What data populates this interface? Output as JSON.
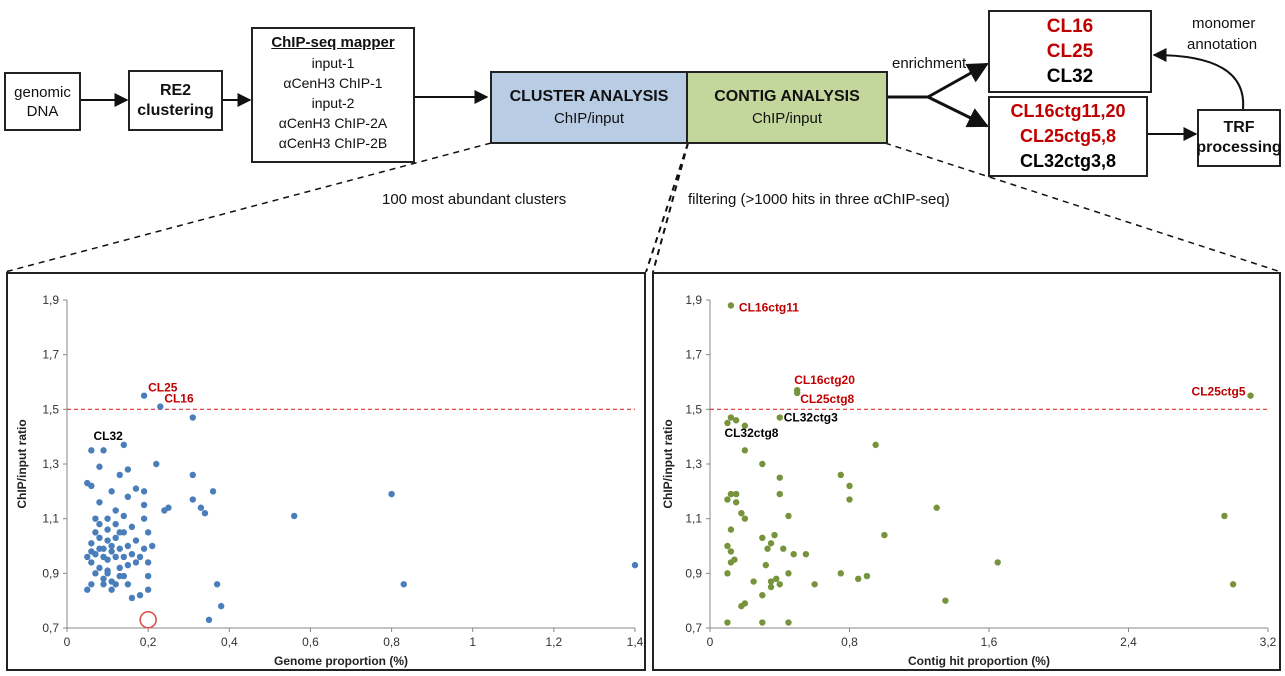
{
  "pipeline": {
    "genomic_dna": [
      "genomic",
      "DNA"
    ],
    "re2": [
      "RE2",
      "clustering"
    ],
    "mapper": {
      "title": "ChIP-seq mapper",
      "lines": [
        "input-1",
        "αCenH3 ChIP-1",
        "input-2",
        "αCenH3 ChIP-2A",
        "αCenH3 ChIP-2B"
      ]
    },
    "cluster_analysis": {
      "title": "CLUSTER ANALYSIS",
      "sub": "ChIP/input",
      "color": "#b8cce4"
    },
    "contig_analysis": {
      "title": "CONTIG ANALYSIS",
      "sub": "ChIP/input",
      "color": "#c3d69b"
    },
    "enrichment_label": "enrichment",
    "monomer_label": [
      "monomer",
      "annotation"
    ],
    "clusters_box": [
      {
        "text": "CL16",
        "color": "#c00000"
      },
      {
        "text": "CL25",
        "color": "#c00000"
      },
      {
        "text": "CL32",
        "color": "#000000"
      }
    ],
    "contigs_box": [
      {
        "text": "CL16ctg11,20",
        "color": "#c00000"
      },
      {
        "text": "CL25ctg5,8",
        "color": "#c00000"
      },
      {
        "text": "CL32ctg3,8",
        "color": "#000000"
      }
    ],
    "trf": [
      "TRF",
      "processing"
    ],
    "left_caption": "100 most abundant clusters",
    "right_caption": "filtering (>1000 hits in three αChIP-seq)"
  },
  "chart_data": [
    {
      "type": "scatter",
      "xlabel": "Genome proportion (%)",
      "ylabel": "ChIP/input ratio",
      "xlim": [
        0,
        1.4
      ],
      "ylim": [
        0.7,
        1.9
      ],
      "xticks": [
        "0",
        "0,2",
        "0,4",
        "0,6",
        "0,8",
        "1",
        "1,2",
        "1,4"
      ],
      "yticks": [
        "0,7",
        "0,9",
        "1,1",
        "1,3",
        "1,5",
        "1,7",
        "1,9"
      ],
      "threshold": 1.5,
      "point_color": "#4a7ebb",
      "highlight_color": "#d9534f",
      "highlight_point": [
        0.2,
        0.73
      ],
      "points": [
        [
          0.06,
          1.35
        ],
        [
          0.09,
          1.35
        ],
        [
          0.14,
          1.37
        ],
        [
          0.19,
          1.55
        ],
        [
          0.23,
          1.51
        ],
        [
          0.31,
          1.47
        ],
        [
          0.8,
          1.19
        ],
        [
          0.56,
          1.11
        ],
        [
          1.4,
          0.93
        ],
        [
          0.83,
          0.86
        ],
        [
          0.37,
          0.86
        ],
        [
          0.38,
          0.78
        ],
        [
          0.35,
          0.73
        ],
        [
          0.31,
          1.26
        ],
        [
          0.31,
          1.17
        ],
        [
          0.33,
          1.14
        ],
        [
          0.34,
          1.12
        ],
        [
          0.36,
          1.2
        ],
        [
          0.24,
          1.13
        ],
        [
          0.25,
          1.14
        ],
        [
          0.05,
          1.23
        ],
        [
          0.06,
          1.22
        ],
        [
          0.07,
          1.1
        ],
        [
          0.07,
          1.05
        ],
        [
          0.06,
          1.01
        ],
        [
          0.06,
          0.98
        ],
        [
          0.05,
          0.96
        ],
        [
          0.06,
          0.94
        ],
        [
          0.07,
          0.9
        ],
        [
          0.06,
          0.86
        ],
        [
          0.05,
          0.84
        ],
        [
          0.08,
          1.08
        ],
        [
          0.08,
          1.03
        ],
        [
          0.08,
          0.99
        ],
        [
          0.09,
          0.96
        ],
        [
          0.08,
          0.92
        ],
        [
          0.09,
          0.88
        ],
        [
          0.09,
          0.86
        ],
        [
          0.08,
          1.16
        ],
        [
          0.08,
          1.29
        ],
        [
          0.1,
          1.1
        ],
        [
          0.1,
          1.06
        ],
        [
          0.1,
          1.02
        ],
        [
          0.11,
          0.98
        ],
        [
          0.1,
          0.95
        ],
        [
          0.1,
          0.91
        ],
        [
          0.11,
          0.87
        ],
        [
          0.11,
          0.84
        ],
        [
          0.11,
          1.2
        ],
        [
          0.12,
          1.13
        ],
        [
          0.12,
          1.08
        ],
        [
          0.12,
          1.03
        ],
        [
          0.13,
          0.99
        ],
        [
          0.12,
          0.96
        ],
        [
          0.13,
          0.92
        ],
        [
          0.13,
          0.89
        ],
        [
          0.12,
          0.86
        ],
        [
          0.13,
          1.26
        ],
        [
          0.14,
          1.11
        ],
        [
          0.14,
          1.05
        ],
        [
          0.15,
          1.0
        ],
        [
          0.14,
          0.96
        ],
        [
          0.15,
          0.93
        ],
        [
          0.14,
          0.89
        ],
        [
          0.15,
          0.86
        ],
        [
          0.15,
          1.28
        ],
        [
          0.15,
          1.18
        ],
        [
          0.16,
          1.07
        ],
        [
          0.17,
          1.02
        ],
        [
          0.16,
          0.97
        ],
        [
          0.17,
          0.94
        ],
        [
          0.16,
          0.81
        ],
        [
          0.18,
          0.82
        ],
        [
          0.17,
          1.21
        ],
        [
          0.19,
          1.15
        ],
        [
          0.19,
          1.1
        ],
        [
          0.2,
          1.05
        ],
        [
          0.19,
          0.99
        ],
        [
          0.2,
          0.94
        ],
        [
          0.2,
          0.89
        ],
        [
          0.2,
          0.84
        ],
        [
          0.19,
          1.2
        ],
        [
          0.22,
          1.3
        ],
        [
          0.21,
          1.0
        ],
        [
          0.09,
          0.99
        ],
        [
          0.11,
          1.0
        ],
        [
          0.13,
          1.05
        ],
        [
          0.07,
          0.97
        ],
        [
          0.18,
          0.96
        ],
        [
          0.1,
          0.9
        ]
      ],
      "annotations": [
        {
          "text": "CL25",
          "x": 0.19,
          "y": 1.55,
          "color": "#c00000"
        },
        {
          "text": "CL16",
          "x": 0.23,
          "y": 1.51,
          "color": "#c00000"
        },
        {
          "text": "CL32",
          "x": 0.14,
          "y": 1.37,
          "color": "#000000"
        }
      ]
    },
    {
      "type": "scatter",
      "xlabel": "Contig hit proportion (%)",
      "ylabel": "ChIP/input ratio",
      "xlim": [
        0,
        3.2
      ],
      "ylim": [
        0.7,
        1.9
      ],
      "xticks": [
        "0",
        "0,8",
        "1,6",
        "2,4",
        "3,2"
      ],
      "yticks": [
        "0,7",
        "0,9",
        "1,1",
        "1,3",
        "1,5",
        "1,7",
        "1,9"
      ],
      "threshold": 1.5,
      "point_color": "#77933c",
      "points": [
        [
          0.12,
          1.88
        ],
        [
          0.5,
          1.57
        ],
        [
          0.5,
          1.56
        ],
        [
          3.1,
          1.55
        ],
        [
          0.4,
          1.47
        ],
        [
          0.2,
          1.44
        ],
        [
          0.12,
          1.47
        ],
        [
          0.15,
          1.46
        ],
        [
          0.1,
          1.45
        ],
        [
          0.2,
          1.35
        ],
        [
          0.12,
          1.19
        ],
        [
          0.1,
          1.17
        ],
        [
          0.15,
          1.19
        ],
        [
          0.15,
          1.16
        ],
        [
          0.18,
          1.12
        ],
        [
          0.2,
          1.1
        ],
        [
          0.12,
          1.06
        ],
        [
          0.1,
          1.0
        ],
        [
          0.12,
          0.98
        ],
        [
          0.14,
          0.95
        ],
        [
          0.12,
          0.94
        ],
        [
          0.1,
          0.9
        ],
        [
          0.1,
          0.72
        ],
        [
          0.18,
          0.78
        ],
        [
          0.2,
          0.79
        ],
        [
          0.3,
          0.82
        ],
        [
          0.35,
          0.85
        ],
        [
          0.32,
          0.93
        ],
        [
          0.35,
          0.87
        ],
        [
          0.38,
          0.88
        ],
        [
          0.33,
          0.99
        ],
        [
          0.3,
          1.03
        ],
        [
          0.35,
          1.01
        ],
        [
          0.37,
          1.04
        ],
        [
          0.3,
          1.3
        ],
        [
          0.4,
          1.25
        ],
        [
          0.4,
          1.19
        ],
        [
          0.42,
          0.99
        ],
        [
          0.45,
          1.11
        ],
        [
          0.48,
          0.97
        ],
        [
          0.45,
          0.9
        ],
        [
          0.45,
          0.72
        ],
        [
          0.55,
          0.97
        ],
        [
          0.6,
          0.86
        ],
        [
          0.3,
          0.72
        ],
        [
          0.4,
          0.86
        ],
        [
          0.25,
          0.87
        ],
        [
          0.75,
          1.26
        ],
        [
          0.8,
          1.17
        ],
        [
          0.8,
          1.22
        ],
        [
          0.75,
          0.9
        ],
        [
          0.85,
          0.88
        ],
        [
          0.9,
          0.89
        ],
        [
          0.95,
          1.37
        ],
        [
          1.0,
          1.04
        ],
        [
          1.3,
          1.14
        ],
        [
          1.35,
          0.8
        ],
        [
          1.65,
          0.94
        ],
        [
          2.95,
          1.11
        ],
        [
          3.0,
          0.86
        ]
      ],
      "annotations": [
        {
          "text": "CL16ctg11",
          "x": 0.12,
          "y": 1.88,
          "color": "#c00000"
        },
        {
          "text": "CL16ctg20",
          "x": 0.5,
          "y": 1.57,
          "color": "#c00000"
        },
        {
          "text": "CL25ctg8",
          "x": 0.5,
          "y": 1.56,
          "color": "#c00000"
        },
        {
          "text": "CL25ctg5",
          "x": 3.1,
          "y": 1.55,
          "color": "#c00000"
        },
        {
          "text": "CL32ctg3",
          "x": 0.4,
          "y": 1.47,
          "color": "#000000"
        },
        {
          "text": "CL32ctg8",
          "x": 0.1,
          "y": 1.45,
          "color": "#000000"
        }
      ]
    }
  ]
}
